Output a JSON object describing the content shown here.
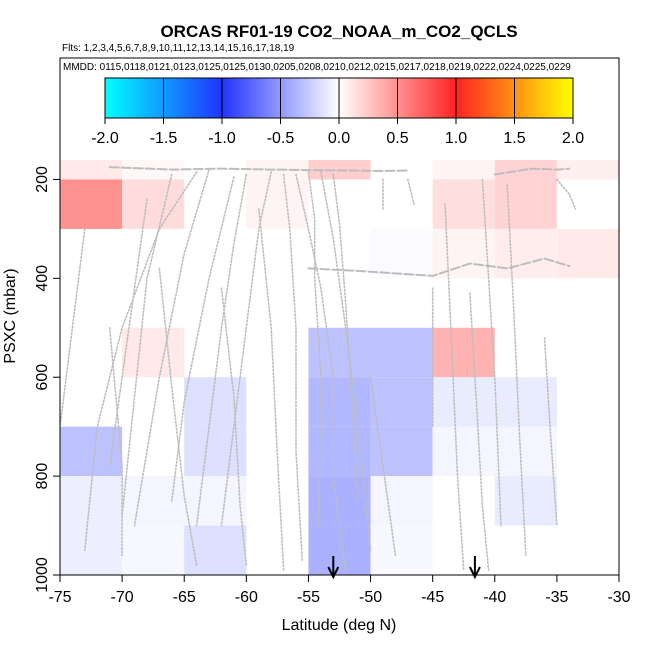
{
  "chart_data": {
    "type": "heatmap",
    "title": "ORCAS RF01-19 CO2_NOAA_m_CO2_QCLS",
    "flights_note": "Flts: 1,2,3,4,5,6,7,8,9,10,11,12,13,14,15,16,17,18,19",
    "dates_note": "MMDD: 0115,0118,0121,0123,0125,0125,0130,0205,0208,0210,0212,0215,0217,0218,0219,0222,0224,0225,0229",
    "xlabel": "Latitude (deg N)",
    "ylabel": "PSXC (mbar)",
    "xlim": [
      -75,
      -30
    ],
    "ylim": [
      1000,
      100
    ],
    "x_ticks": [
      -75,
      -70,
      -65,
      -60,
      -55,
      -50,
      -45,
      -40,
      -35,
      -30
    ],
    "y_ticks": [
      200,
      400,
      600,
      800,
      1000
    ],
    "colorbar": {
      "min": -2.0,
      "max": 2.0,
      "ticks": [
        "-2.0",
        "-1.5",
        "-1.0",
        "-0.5",
        "0.0",
        "0.5",
        "1.0",
        "1.5",
        "2.0"
      ],
      "stops": [
        {
          "v": -2.0,
          "c": "#00ffff"
        },
        {
          "v": -1.0,
          "c": "#2233ff"
        },
        {
          "v": 0.0,
          "c": "#ffffff"
        },
        {
          "v": 1.0,
          "c": "#ff2222"
        },
        {
          "v": 2.0,
          "c": "#ffff00"
        }
      ]
    },
    "cells": [
      {
        "lat0": -75,
        "lat1": -70,
        "p0": 100,
        "p1": 200,
        "value": 0.1
      },
      {
        "lat0": -70,
        "lat1": -65,
        "p0": 100,
        "p1": 200,
        "value": 0.03
      },
      {
        "lat0": -60,
        "lat1": -55,
        "p0": 100,
        "p1": 200,
        "value": 0.05
      },
      {
        "lat0": -55,
        "lat1": -50,
        "p0": 100,
        "p1": 200,
        "value": 0.22
      },
      {
        "lat0": -45,
        "lat1": -40,
        "p0": 100,
        "p1": 200,
        "value": 0.05
      },
      {
        "lat0": -40,
        "lat1": -35,
        "p0": 100,
        "p1": 200,
        "value": 0.2
      },
      {
        "lat0": -35,
        "lat1": -30,
        "p0": 100,
        "p1": 200,
        "value": 0.07
      },
      {
        "lat0": -75,
        "lat1": -70,
        "p0": 200,
        "p1": 300,
        "value": 0.5
      },
      {
        "lat0": -70,
        "lat1": -65,
        "p0": 200,
        "p1": 300,
        "value": 0.16
      },
      {
        "lat0": -60,
        "lat1": -55,
        "p0": 200,
        "p1": 300,
        "value": 0.05
      },
      {
        "lat0": -45,
        "lat1": -40,
        "p0": 200,
        "p1": 300,
        "value": 0.15
      },
      {
        "lat0": -40,
        "lat1": -35,
        "p0": 200,
        "p1": 300,
        "value": 0.2
      },
      {
        "lat0": -50,
        "lat1": -45,
        "p0": 300,
        "p1": 400,
        "value": -0.02
      },
      {
        "lat0": -45,
        "lat1": -40,
        "p0": 300,
        "p1": 400,
        "value": 0.05
      },
      {
        "lat0": -40,
        "lat1": -35,
        "p0": 300,
        "p1": 400,
        "value": 0.08
      },
      {
        "lat0": -35,
        "lat1": -30,
        "p0": 300,
        "p1": 400,
        "value": 0.1
      },
      {
        "lat0": -70,
        "lat1": -65,
        "p0": 500,
        "p1": 600,
        "value": 0.1
      },
      {
        "lat0": -55,
        "lat1": -50,
        "p0": 500,
        "p1": 600,
        "value": -0.3
      },
      {
        "lat0": -50,
        "lat1": -45,
        "p0": 500,
        "p1": 600,
        "value": -0.3
      },
      {
        "lat0": -45,
        "lat1": -40,
        "p0": 500,
        "p1": 600,
        "value": 0.35
      },
      {
        "lat0": -65,
        "lat1": -60,
        "p0": 600,
        "p1": 700,
        "value": -0.15
      },
      {
        "lat0": -55,
        "lat1": -50,
        "p0": 600,
        "p1": 700,
        "value": -0.35
      },
      {
        "lat0": -50,
        "lat1": -45,
        "p0": 600,
        "p1": 700,
        "value": -0.3
      },
      {
        "lat0": -45,
        "lat1": -40,
        "p0": 600,
        "p1": 700,
        "value": -0.1
      },
      {
        "lat0": -40,
        "lat1": -35,
        "p0": 600,
        "p1": 700,
        "value": -0.1
      },
      {
        "lat0": -75,
        "lat1": -70,
        "p0": 700,
        "p1": 800,
        "value": -0.3
      },
      {
        "lat0": -65,
        "lat1": -60,
        "p0": 700,
        "p1": 800,
        "value": -0.15
      },
      {
        "lat0": -55,
        "lat1": -50,
        "p0": 700,
        "p1": 800,
        "value": -0.35
      },
      {
        "lat0": -50,
        "lat1": -45,
        "p0": 700,
        "p1": 800,
        "value": -0.3
      },
      {
        "lat0": -45,
        "lat1": -40,
        "p0": 700,
        "p1": 800,
        "value": -0.05
      },
      {
        "lat0": -40,
        "lat1": -35,
        "p0": 700,
        "p1": 800,
        "value": -0.05
      },
      {
        "lat0": -75,
        "lat1": -70,
        "p0": 800,
        "p1": 900,
        "value": -0.08
      },
      {
        "lat0": -70,
        "lat1": -65,
        "p0": 800,
        "p1": 900,
        "value": -0.05
      },
      {
        "lat0": -65,
        "lat1": -60,
        "p0": 800,
        "p1": 900,
        "value": -0.05
      },
      {
        "lat0": -55,
        "lat1": -50,
        "p0": 800,
        "p1": 900,
        "value": -0.38
      },
      {
        "lat0": -50,
        "lat1": -45,
        "p0": 800,
        "p1": 900,
        "value": -0.05
      },
      {
        "lat0": -40,
        "lat1": -35,
        "p0": 800,
        "p1": 900,
        "value": -0.1
      },
      {
        "lat0": -75,
        "lat1": -70,
        "p0": 900,
        "p1": 1000,
        "value": -0.08
      },
      {
        "lat0": -70,
        "lat1": -65,
        "p0": 900,
        "p1": 1000,
        "value": -0.04
      },
      {
        "lat0": -65,
        "lat1": -60,
        "p0": 900,
        "p1": 1000,
        "value": -0.15
      },
      {
        "lat0": -55,
        "lat1": -50,
        "p0": 900,
        "p1": 1000,
        "value": -0.38
      },
      {
        "lat0": -50,
        "lat1": -45,
        "p0": 900,
        "p1": 1000,
        "value": -0.03
      }
    ],
    "tracks": [
      {
        "style": "dashed",
        "points": [
          [
            -71,
            175
          ],
          [
            -66,
            180
          ],
          [
            -62,
            178
          ],
          [
            -58,
            180
          ],
          [
            -52,
            182
          ],
          [
            -49,
            183
          ],
          [
            -47,
            182
          ]
        ]
      },
      {
        "style": "dashed",
        "points": [
          [
            -40,
            190
          ],
          [
            -37,
            178
          ],
          [
            -35,
            180
          ],
          [
            -34,
            178
          ]
        ]
      },
      {
        "style": "dashed",
        "points": [
          [
            -55,
            380
          ],
          [
            -51,
            385
          ],
          [
            -48,
            390
          ],
          [
            -45,
            395
          ],
          [
            -42,
            370
          ],
          [
            -39,
            380
          ],
          [
            -36,
            360
          ],
          [
            -34,
            375
          ]
        ]
      },
      {
        "style": "dotted",
        "points": [
          [
            -56,
            190
          ],
          [
            -55,
            300
          ],
          [
            -54,
            420
          ],
          [
            -53,
            600
          ],
          [
            -53,
            800
          ],
          [
            -52,
            1000
          ]
        ]
      },
      {
        "style": "dotted",
        "points": [
          [
            -55,
            185
          ],
          [
            -54.5,
            280
          ],
          [
            -54.5,
            400
          ],
          [
            -54,
            600
          ],
          [
            -54.2,
            900
          ]
        ]
      },
      {
        "style": "dotted",
        "points": [
          [
            -54,
            185
          ],
          [
            -53,
            320
          ],
          [
            -52,
            500
          ],
          [
            -51,
            700
          ],
          [
            -50,
            950
          ]
        ]
      },
      {
        "style": "dotted",
        "points": [
          [
            -53,
            190
          ],
          [
            -52.5,
            290
          ],
          [
            -52,
            450
          ],
          [
            -51.5,
            650
          ],
          [
            -51,
            850
          ]
        ]
      },
      {
        "style": "dotted",
        "points": [
          [
            -57,
            190
          ],
          [
            -56.5,
            300
          ],
          [
            -56,
            500
          ],
          [
            -56,
            750
          ],
          [
            -55.5,
            970
          ]
        ]
      },
      {
        "style": "dotted",
        "points": [
          [
            -58,
            185
          ],
          [
            -59,
            300
          ],
          [
            -60,
            500
          ],
          [
            -61,
            700
          ],
          [
            -62,
            900
          ]
        ]
      },
      {
        "style": "dotted",
        "points": [
          [
            -60,
            190
          ],
          [
            -61,
            330
          ],
          [
            -62,
            500
          ],
          [
            -63,
            700
          ],
          [
            -64,
            900
          ]
        ]
      },
      {
        "style": "dotted",
        "points": [
          [
            -61,
            195
          ],
          [
            -63,
            400
          ],
          [
            -65,
            650
          ],
          [
            -66,
            850
          ]
        ]
      },
      {
        "style": "dotted",
        "points": [
          [
            -63,
            180
          ],
          [
            -65,
            350
          ],
          [
            -67,
            600
          ],
          [
            -69,
            900
          ]
        ]
      },
      {
        "style": "dotted",
        "points": [
          [
            -64,
            185
          ],
          [
            -67,
            300
          ],
          [
            -70,
            500
          ],
          [
            -72,
            700
          ],
          [
            -73,
            950
          ]
        ]
      },
      {
        "style": "dotted",
        "points": [
          [
            -66,
            190
          ],
          [
            -68,
            400
          ],
          [
            -69,
            640
          ],
          [
            -70,
            880
          ]
        ]
      },
      {
        "style": "dotted",
        "points": [
          [
            -68,
            240
          ],
          [
            -69,
            420
          ],
          [
            -70,
            600
          ],
          [
            -71,
            780
          ]
        ]
      },
      {
        "style": "dotted",
        "points": [
          [
            -73,
            300
          ],
          [
            -74,
            500
          ],
          [
            -75,
            700
          ]
        ]
      },
      {
        "style": "dotted",
        "points": [
          [
            -71,
            500
          ],
          [
            -70,
            780
          ],
          [
            -70,
            960
          ]
        ]
      },
      {
        "style": "dotted",
        "points": [
          [
            -67,
            380
          ],
          [
            -66,
            620
          ],
          [
            -65,
            840
          ],
          [
            -64,
            980
          ]
        ]
      },
      {
        "style": "dotted",
        "points": [
          [
            -62,
            420
          ],
          [
            -61,
            640
          ],
          [
            -60.5,
            860
          ],
          [
            -60,
            980
          ]
        ]
      },
      {
        "style": "dotted",
        "points": [
          [
            -59,
            260
          ],
          [
            -58,
            500
          ],
          [
            -57.5,
            760
          ],
          [
            -57,
            990
          ]
        ]
      },
      {
        "style": "dotted",
        "points": [
          [
            -50,
            600
          ],
          [
            -49,
            780
          ],
          [
            -48,
            960
          ]
        ]
      },
      {
        "style": "dotted",
        "points": [
          [
            -49,
            200
          ],
          [
            -49,
            260
          ]
        ]
      },
      {
        "style": "dotted",
        "points": [
          [
            -47,
            200
          ],
          [
            -46.5,
            250
          ]
        ]
      },
      {
        "style": "dotted",
        "points": [
          [
            -45,
            420
          ],
          [
            -45,
            700
          ]
        ]
      },
      {
        "style": "dotted",
        "points": [
          [
            -44,
            250
          ],
          [
            -43.5,
            520
          ],
          [
            -43,
            800
          ],
          [
            -42.5,
            990
          ]
        ]
      },
      {
        "style": "dotted",
        "points": [
          [
            -42,
            430
          ],
          [
            -41.5,
            640
          ],
          [
            -41,
            860
          ],
          [
            -40.5,
            990
          ]
        ]
      },
      {
        "style": "dotted",
        "points": [
          [
            -39,
            210
          ],
          [
            -38.5,
            450
          ],
          [
            -38,
            720
          ],
          [
            -37.5,
            960
          ]
        ]
      },
      {
        "style": "dotted",
        "points": [
          [
            -41,
            200
          ],
          [
            -40,
            600
          ],
          [
            -39.5,
            900
          ]
        ]
      },
      {
        "style": "dotted",
        "points": [
          [
            -36,
            520
          ],
          [
            -35.5,
            720
          ],
          [
            -35,
            900
          ]
        ]
      },
      {
        "style": "dotted",
        "points": [
          [
            -35,
            200
          ],
          [
            -34,
            230
          ],
          [
            -33.5,
            260
          ]
        ]
      }
    ],
    "arrows_lat": [
      -53.0,
      -41.6
    ]
  }
}
